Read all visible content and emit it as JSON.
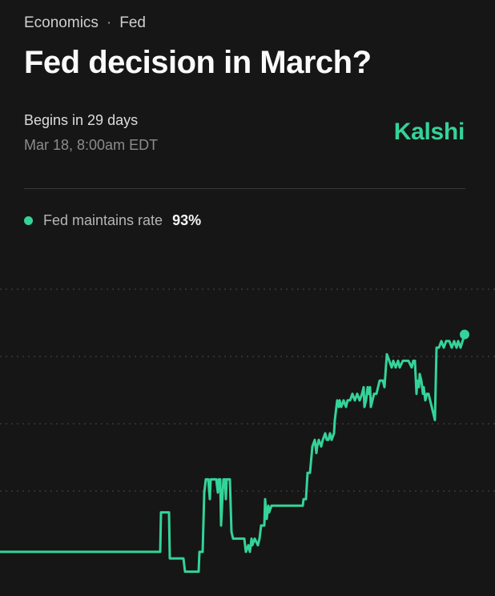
{
  "breadcrumb": {
    "category": "Economics",
    "separator": "·",
    "topic": "Fed"
  },
  "title": "Fed decision in March?",
  "schedule": {
    "begins": "Begins in 29 days",
    "date": "Mar 18, 8:00am EDT"
  },
  "brand": "Kalshi",
  "colors": {
    "accent": "#34d399",
    "background": "#161616",
    "grid": "#4a4a4a"
  },
  "legend": {
    "label": "Fed maintains rate",
    "value": "93%"
  },
  "chart_data": {
    "type": "line",
    "grid": "horizontal dotted",
    "ylim": [
      55,
      100
    ],
    "series": [
      {
        "name": "Fed maintains rate",
        "color": "#34d399",
        "points": [
          [
            0,
            60
          ],
          [
            200,
            60
          ],
          [
            201,
            66
          ],
          [
            211,
            66
          ],
          [
            212,
            59
          ],
          [
            229,
            59
          ],
          [
            231,
            57
          ],
          [
            248,
            57
          ],
          [
            249,
            60
          ],
          [
            253,
            60
          ],
          [
            255,
            69
          ],
          [
            257,
            71
          ],
          [
            260,
            71
          ],
          [
            262,
            68
          ],
          [
            263,
            71
          ],
          [
            270,
            71
          ],
          [
            272,
            69
          ],
          [
            273,
            71
          ],
          [
            275,
            71
          ],
          [
            276,
            64
          ],
          [
            278,
            69
          ],
          [
            279,
            71
          ],
          [
            281,
            71
          ],
          [
            282,
            68
          ],
          [
            283,
            71
          ],
          [
            287,
            71
          ],
          [
            289,
            63
          ],
          [
            291,
            62
          ],
          [
            305,
            62
          ],
          [
            307,
            60
          ],
          [
            310,
            61
          ],
          [
            312,
            60
          ],
          [
            314,
            62
          ],
          [
            315,
            61
          ],
          [
            318,
            62
          ],
          [
            322,
            61
          ],
          [
            324,
            62
          ],
          [
            326,
            64
          ],
          [
            330,
            64
          ],
          [
            331,
            68
          ],
          [
            333,
            65
          ],
          [
            335,
            67
          ],
          [
            336,
            66
          ],
          [
            339,
            67
          ],
          [
            341,
            67
          ],
          [
            378,
            67
          ],
          [
            379,
            68
          ],
          [
            382,
            68
          ],
          [
            384,
            72
          ],
          [
            387,
            72
          ],
          [
            390,
            76
          ],
          [
            393,
            77
          ],
          [
            395,
            75
          ],
          [
            396,
            76
          ],
          [
            398,
            77
          ],
          [
            401,
            76
          ],
          [
            403,
            77
          ],
          [
            406,
            78
          ],
          [
            408,
            77
          ],
          [
            410,
            77
          ],
          [
            412,
            78
          ],
          [
            414,
            77
          ],
          [
            417,
            78
          ],
          [
            418,
            80
          ],
          [
            421,
            83
          ],
          [
            423,
            82
          ],
          [
            424,
            83
          ],
          [
            426,
            82
          ],
          [
            429,
            83
          ],
          [
            432,
            82
          ],
          [
            434,
            83
          ],
          [
            437,
            83
          ],
          [
            440,
            84
          ],
          [
            443,
            83
          ],
          [
            446,
            84
          ],
          [
            449,
            83
          ],
          [
            452,
            84
          ],
          [
            454,
            85
          ],
          [
            455,
            82
          ],
          [
            457,
            83
          ],
          [
            459,
            85
          ],
          [
            460,
            84
          ],
          [
            462,
            85
          ],
          [
            463,
            82
          ],
          [
            465,
            83
          ],
          [
            467,
            84
          ],
          [
            470,
            84
          ],
          [
            472,
            85
          ],
          [
            474,
            86
          ],
          [
            478,
            86
          ],
          [
            480,
            85
          ],
          [
            483,
            90
          ],
          [
            486,
            89
          ],
          [
            489,
            88
          ],
          [
            491,
            89
          ],
          [
            494,
            88
          ],
          [
            497,
            89
          ],
          [
            499,
            88
          ],
          [
            503,
            89
          ],
          [
            510,
            89
          ],
          [
            514,
            88
          ],
          [
            516,
            89
          ],
          [
            518,
            89
          ],
          [
            520,
            84
          ],
          [
            521,
            86
          ],
          [
            523,
            85
          ],
          [
            524,
            87
          ],
          [
            526,
            86
          ],
          [
            528,
            84
          ],
          [
            529,
            85
          ],
          [
            531,
            83
          ],
          [
            533,
            84
          ],
          [
            535,
            84
          ],
          [
            537,
            83
          ],
          [
            539,
            82
          ],
          [
            541,
            81
          ],
          [
            543,
            80
          ],
          [
            545,
            91
          ],
          [
            548,
            91
          ],
          [
            551,
            92
          ],
          [
            554,
            91
          ],
          [
            557,
            92
          ],
          [
            561,
            92
          ],
          [
            564,
            91
          ],
          [
            567,
            92
          ],
          [
            570,
            91
          ],
          [
            572,
            92
          ],
          [
            575,
            91
          ],
          [
            580,
            93
          ]
        ]
      }
    ]
  }
}
